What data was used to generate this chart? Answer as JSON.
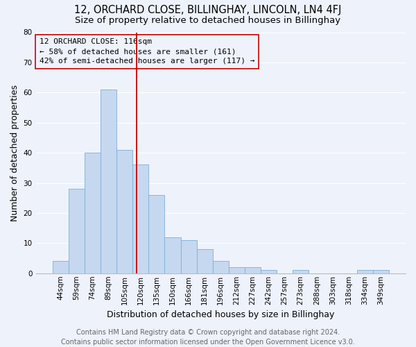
{
  "title": "12, ORCHARD CLOSE, BILLINGHAY, LINCOLN, LN4 4FJ",
  "subtitle": "Size of property relative to detached houses in Billinghay",
  "xlabel": "Distribution of detached houses by size in Billinghay",
  "ylabel": "Number of detached properties",
  "bar_labels": [
    "44sqm",
    "59sqm",
    "74sqm",
    "89sqm",
    "105sqm",
    "120sqm",
    "135sqm",
    "150sqm",
    "166sqm",
    "181sqm",
    "196sqm",
    "212sqm",
    "227sqm",
    "242sqm",
    "257sqm",
    "273sqm",
    "288sqm",
    "303sqm",
    "318sqm",
    "334sqm",
    "349sqm"
  ],
  "bar_values": [
    4,
    28,
    40,
    61,
    41,
    36,
    26,
    12,
    11,
    8,
    4,
    2,
    2,
    1,
    0,
    1,
    0,
    0,
    0,
    1,
    1
  ],
  "bar_color": "#c5d8f0",
  "bar_edge_color": "#7bafd4",
  "ylim": [
    0,
    80
  ],
  "yticks": [
    0,
    10,
    20,
    30,
    40,
    50,
    60,
    70,
    80
  ],
  "vline_x_index": 4.73,
  "vline_color": "#cc0000",
  "annotation_box_edge": "#cc0000",
  "property_label": "12 ORCHARD CLOSE: 116sqm",
  "annotation_line1": "← 58% of detached houses are smaller (161)",
  "annotation_line2": "42% of semi-detached houses are larger (117) →",
  "footer_line1": "Contains HM Land Registry data © Crown copyright and database right 2024.",
  "footer_line2": "Contains public sector information licensed under the Open Government Licence v3.0.",
  "bg_color": "#eef2fb",
  "grid_color": "#ffffff",
  "title_fontsize": 10.5,
  "subtitle_fontsize": 9.5,
  "axis_label_fontsize": 9,
  "tick_fontsize": 7.5,
  "annotation_fontsize": 8,
  "footer_fontsize": 7
}
